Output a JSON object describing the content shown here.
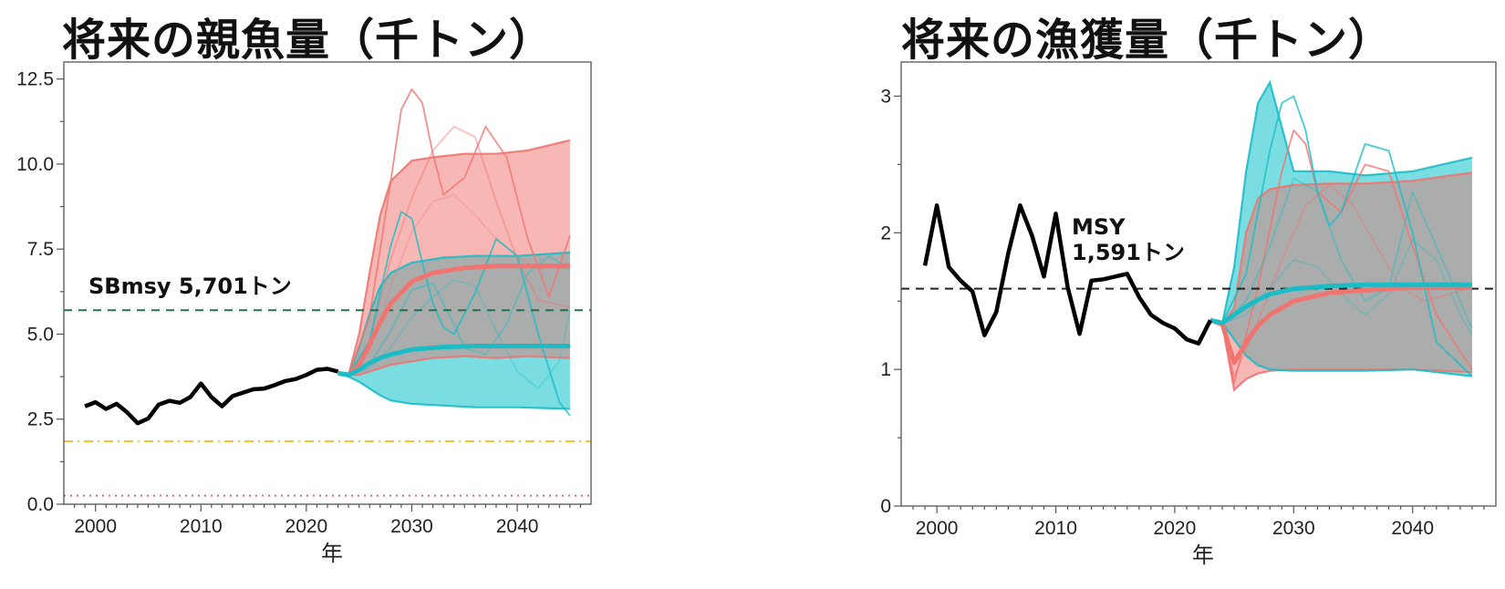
{
  "chart_data": [
    {
      "type": "line",
      "title": "将来の親魚量（千トン）",
      "xlabel": "年",
      "ylabel": "",
      "xlim": [
        1997,
        2047
      ],
      "ylim": [
        0,
        13
      ],
      "xticks": [
        2000,
        2010,
        2020,
        2030,
        2040
      ],
      "yticks": [
        0.0,
        2.5,
        5.0,
        7.5,
        10.0,
        12.5
      ],
      "ytick_labels": [
        "0.0",
        "2.5",
        "5.0",
        "7.5",
        "10.0",
        "12.5"
      ],
      "grid": false,
      "colors": {
        "historical": "#000000",
        "scenario_a": "#f07470",
        "scenario_b": "#1bbcc6",
        "band_a": "#f7b8b5",
        "band_b": "#79dde2",
        "overlap": "#b4a4a2"
      },
      "reference_lines": [
        {
          "label": "SBmsy 5,701トン",
          "y": 5.701,
          "color": "#2e6b4f",
          "style": "dashed"
        },
        {
          "label": "",
          "y": 1.85,
          "color": "#f1c232",
          "style": "dashdot"
        },
        {
          "label": "",
          "y": 0.25,
          "color": "#e06666",
          "style": "dotted"
        }
      ],
      "series": [
        {
          "role": "historical",
          "x": [
            1999,
            2000,
            2001,
            2002,
            2003,
            2004,
            2005,
            2006,
            2007,
            2008,
            2009,
            2010,
            2011,
            2012,
            2013,
            2014,
            2015,
            2016,
            2017,
            2018,
            2019,
            2020,
            2021,
            2022,
            2023
          ],
          "y": [
            2.88,
            3.0,
            2.8,
            2.95,
            2.7,
            2.38,
            2.52,
            2.93,
            3.04,
            2.98,
            3.15,
            3.55,
            3.15,
            2.88,
            3.18,
            3.28,
            3.38,
            3.4,
            3.5,
            3.62,
            3.68,
            3.8,
            3.95,
            3.98,
            3.9
          ]
        },
        {
          "role": "scenario_a",
          "median": {
            "x": [
              2023,
              2024,
              2025,
              2026,
              2027,
              2028,
              2030,
              2032,
              2035,
              2038,
              2041,
              2045
            ],
            "y": [
              3.85,
              3.8,
              4.1,
              4.7,
              5.35,
              5.9,
              6.55,
              6.8,
              6.95,
              7.0,
              7.0,
              7.0
            ]
          },
          "upper": {
            "x": [
              2023,
              2024,
              2025,
              2026,
              2027,
              2028,
              2030,
              2032,
              2035,
              2038,
              2041,
              2045
            ],
            "y": [
              3.85,
              3.8,
              5.0,
              6.8,
              8.5,
              9.5,
              10.1,
              10.2,
              10.3,
              10.3,
              10.4,
              10.7
            ]
          },
          "lower": {
            "x": [
              2023,
              2024,
              2025,
              2026,
              2027,
              2028,
              2030,
              2032,
              2035,
              2038,
              2041,
              2045
            ],
            "y": [
              3.85,
              3.8,
              3.8,
              3.9,
              4.0,
              4.1,
              4.2,
              4.3,
              4.35,
              4.3,
              4.35,
              4.3
            ]
          },
          "trajectories": [
            {
              "x": [
                2024,
                2026,
                2028,
                2029,
                2030,
                2031,
                2032,
                2033,
                2035,
                2037,
                2039,
                2041,
                2043,
                2045
              ],
              "y": [
                3.8,
                5.5,
                9.5,
                11.6,
                12.2,
                11.8,
                10.3,
                9.1,
                9.6,
                11.1,
                10.2,
                7.8,
                6.1,
                7.9
              ]
            },
            {
              "x": [
                2024,
                2026,
                2028,
                2030,
                2032,
                2034,
                2036,
                2038,
                2040,
                2042,
                2045
              ],
              "y": [
                3.8,
                4.7,
                7.2,
                9.0,
                10.4,
                11.1,
                10.8,
                8.9,
                7.2,
                6.0,
                5.8
              ]
            },
            {
              "x": [
                2024,
                2026,
                2028,
                2030,
                2032,
                2034,
                2036,
                2038,
                2040,
                2042,
                2045
              ],
              "y": [
                3.8,
                4.5,
                6.4,
                8.0,
                8.9,
                9.1,
                8.5,
                7.8,
                7.3,
                6.9,
                7.1
              ]
            }
          ]
        },
        {
          "role": "scenario_b",
          "median": {
            "x": [
              2023,
              2024,
              2025,
              2026,
              2027,
              2028,
              2030,
              2033,
              2036,
              2040,
              2045
            ],
            "y": [
              3.85,
              3.8,
              3.95,
              4.15,
              4.3,
              4.4,
              4.55,
              4.62,
              4.65,
              4.65,
              4.65
            ]
          },
          "upper": {
            "x": [
              2023,
              2024,
              2025,
              2026,
              2027,
              2028,
              2030,
              2033,
              2036,
              2040,
              2045
            ],
            "y": [
              3.85,
              3.8,
              4.6,
              5.6,
              6.4,
              6.8,
              7.1,
              7.25,
              7.3,
              7.3,
              7.4
            ]
          },
          "lower": {
            "x": [
              2023,
              2024,
              2025,
              2026,
              2027,
              2028,
              2030,
              2033,
              2036,
              2040,
              2045
            ],
            "y": [
              3.85,
              3.75,
              3.6,
              3.4,
              3.2,
              3.05,
              2.95,
              2.9,
              2.85,
              2.85,
              2.8
            ]
          },
          "trajectories": [
            {
              "x": [
                2024,
                2026,
                2028,
                2029,
                2030,
                2031,
                2032,
                2033,
                2034,
                2036,
                2038,
                2040,
                2042,
                2044,
                2045
              ],
              "y": [
                3.8,
                4.8,
                7.6,
                8.6,
                8.4,
                7.1,
                5.9,
                5.2,
                5.0,
                6.2,
                7.8,
                7.3,
                5.0,
                3.0,
                2.6
              ]
            },
            {
              "x": [
                2024,
                2026,
                2028,
                2030,
                2032,
                2034,
                2035,
                2037,
                2039,
                2041,
                2043,
                2045
              ],
              "y": [
                3.8,
                4.1,
                5.1,
                6.3,
                6.5,
                5.3,
                4.6,
                4.4,
                5.3,
                6.8,
                7.3,
                6.9
              ]
            },
            {
              "x": [
                2024,
                2026,
                2028,
                2030,
                2032,
                2034,
                2036,
                2038,
                2040,
                2042,
                2044,
                2045
              ],
              "y": [
                3.8,
                4.0,
                4.6,
                5.5,
                6.1,
                6.6,
                6.4,
                5.1,
                3.9,
                3.4,
                4.2,
                5.7
              ]
            }
          ]
        }
      ]
    },
    {
      "type": "line",
      "title": "将来の漁獲量（千トン）",
      "xlabel": "年",
      "ylabel": "",
      "xlim": [
        1997,
        2047
      ],
      "ylim": [
        0,
        3.25
      ],
      "xticks": [
        2000,
        2010,
        2020,
        2030,
        2040
      ],
      "yticks": [
        0,
        1,
        2,
        3
      ],
      "ytick_labels": [
        "0",
        "1",
        "2",
        "3"
      ],
      "grid": false,
      "colors": {
        "historical": "#000000",
        "scenario_a": "#f07470",
        "scenario_b": "#1bbcc6",
        "band_a": "#f7b8b5",
        "band_b": "#79dde2",
        "overlap": "#b4a4a2"
      },
      "reference_lines": [
        {
          "label": "MSY\n1,591トン",
          "y": 1.591,
          "color": "#222222",
          "style": "dashed"
        }
      ],
      "series": [
        {
          "role": "historical",
          "x": [
            1999,
            2000,
            2001,
            2002,
            2003,
            2004,
            2005,
            2006,
            2007,
            2008,
            2009,
            2010,
            2011,
            2012,
            2013,
            2014,
            2015,
            2016,
            2017,
            2018,
            2019,
            2020,
            2021,
            2022,
            2023
          ],
          "y": [
            1.76,
            2.2,
            1.75,
            1.65,
            1.57,
            1.25,
            1.42,
            1.85,
            2.2,
            1.98,
            1.68,
            2.14,
            1.6,
            1.26,
            1.65,
            1.66,
            1.68,
            1.7,
            1.53,
            1.4,
            1.34,
            1.3,
            1.22,
            1.19,
            1.36
          ]
        },
        {
          "role": "scenario_a",
          "median": {
            "x": [
              2023,
              2024,
              2025,
              2026,
              2027,
              2028,
              2030,
              2033,
              2036,
              2040,
              2045
            ],
            "y": [
              1.36,
              1.33,
              1.05,
              1.2,
              1.32,
              1.4,
              1.5,
              1.56,
              1.58,
              1.6,
              1.6
            ]
          },
          "upper": {
            "x": [
              2023,
              2024,
              2025,
              2026,
              2027,
              2028,
              2030,
              2033,
              2036,
              2040,
              2045
            ],
            "y": [
              1.36,
              1.33,
              1.45,
              2.0,
              2.25,
              2.32,
              2.35,
              2.36,
              2.36,
              2.38,
              2.44
            ]
          },
          "lower": {
            "x": [
              2023,
              2024,
              2025,
              2026,
              2027,
              2028,
              2030,
              2033,
              2036,
              2040,
              2045
            ],
            "y": [
              1.36,
              1.33,
              0.85,
              0.93,
              0.97,
              0.99,
              1.0,
              1.0,
              1.0,
              1.0,
              0.98
            ]
          },
          "trajectories": [
            {
              "x": [
                2024,
                2025,
                2027,
                2029,
                2030,
                2031,
                2032,
                2034,
                2036,
                2038,
                2040,
                2042,
                2045
              ],
              "y": [
                1.33,
                0.9,
                1.6,
                2.45,
                2.75,
                2.65,
                2.3,
                2.15,
                2.5,
                2.45,
                1.9,
                1.4,
                1.0
              ]
            },
            {
              "x": [
                2024,
                2025,
                2027,
                2029,
                2031,
                2033,
                2035,
                2037,
                2039,
                2041,
                2043,
                2045
              ],
              "y": [
                1.33,
                0.95,
                1.35,
                1.8,
                2.2,
                2.35,
                2.2,
                1.9,
                1.6,
                1.5,
                1.55,
                1.6
              ]
            }
          ]
        },
        {
          "role": "scenario_b",
          "median": {
            "x": [
              2023,
              2024,
              2025,
              2026,
              2027,
              2028,
              2030,
              2033,
              2036,
              2040,
              2045
            ],
            "y": [
              1.36,
              1.34,
              1.4,
              1.46,
              1.51,
              1.55,
              1.59,
              1.61,
              1.62,
              1.62,
              1.62
            ]
          },
          "upper": {
            "x": [
              2023,
              2024,
              2025,
              2026,
              2027,
              2028,
              2030,
              2033,
              2036,
              2040,
              2045
            ],
            "y": [
              1.36,
              1.34,
              1.75,
              2.45,
              2.95,
              3.1,
              2.45,
              2.45,
              2.42,
              2.45,
              2.55
            ]
          },
          "lower": {
            "x": [
              2023,
              2024,
              2025,
              2026,
              2027,
              2028,
              2030,
              2033,
              2036,
              2040,
              2045
            ],
            "y": [
              1.36,
              1.34,
              1.22,
              1.1,
              1.03,
              1.0,
              0.99,
              0.99,
              0.99,
              1.0,
              0.95
            ]
          },
          "trajectories": [
            {
              "x": [
                2024,
                2026,
                2028,
                2029,
                2030,
                2031,
                2032,
                2033,
                2034,
                2036,
                2038,
                2040,
                2042,
                2045
              ],
              "y": [
                1.34,
                1.7,
                2.6,
                2.95,
                3.0,
                2.75,
                2.3,
                2.05,
                2.15,
                2.65,
                2.6,
                2.0,
                1.2,
                0.95
              ]
            },
            {
              "x": [
                2024,
                2026,
                2028,
                2030,
                2032,
                2034,
                2036,
                2038,
                2040,
                2042,
                2045
              ],
              "y": [
                1.34,
                1.5,
                1.9,
                2.4,
                2.3,
                1.8,
                1.5,
                1.6,
                2.3,
                1.9,
                1.3
              ]
            },
            {
              "x": [
                2024,
                2026,
                2028,
                2030,
                2032,
                2034,
                2036,
                2038,
                2040,
                2042,
                2044,
                2045
              ],
              "y": [
                1.34,
                1.4,
                1.6,
                1.8,
                1.75,
                1.55,
                1.4,
                1.55,
                1.95,
                1.8,
                1.4,
                1.25
              ]
            }
          ]
        }
      ]
    }
  ]
}
